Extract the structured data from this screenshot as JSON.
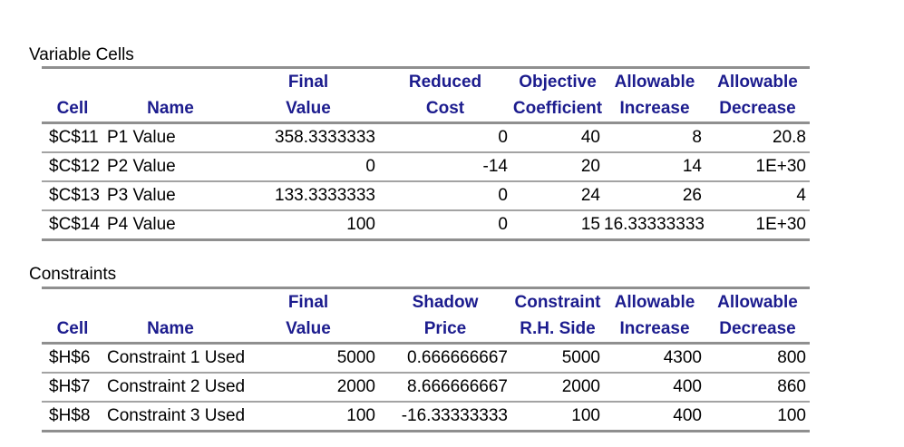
{
  "report_type": "solver-sensitivity-report",
  "colors": {
    "background": "#ffffff",
    "header_text": "#1c1c8e",
    "body_text": "#000000",
    "grid_line_heavy": "#8f8f8f",
    "grid_line_light": "#a3a3a3"
  },
  "variable_cells": {
    "title": "Variable Cells",
    "col_headers_top": [
      "",
      "",
      "Final",
      "Reduced",
      "Objective",
      "Allowable",
      "Allowable"
    ],
    "col_headers_bottom": [
      "Cell",
      "Name",
      "Value",
      "Cost",
      "Coefficient",
      "Increase",
      "Decrease"
    ],
    "rows": [
      [
        "$C$11",
        "P1 Value",
        "358.3333333",
        "0",
        "40",
        "8",
        "20.8"
      ],
      [
        "$C$12",
        "P2 Value",
        "0",
        "-14",
        "20",
        "14",
        "1E+30"
      ],
      [
        "$C$13",
        "P3 Value",
        "133.3333333",
        "0",
        "24",
        "26",
        "4"
      ],
      [
        "$C$14",
        "P4 Value",
        "100",
        "0",
        "15",
        "16.33333333",
        "1E+30"
      ]
    ]
  },
  "constraints": {
    "title": "Constraints",
    "col_headers_top": [
      "",
      "",
      "Final",
      "Shadow",
      "Constraint",
      "Allowable",
      "Allowable"
    ],
    "col_headers_bottom": [
      "Cell",
      "Name",
      "Value",
      "Price",
      "R.H. Side",
      "Increase",
      "Decrease"
    ],
    "rows": [
      [
        "$H$6",
        "Constraint 1 Used",
        "5000",
        "0.666666667",
        "5000",
        "4300",
        "800"
      ],
      [
        "$H$7",
        "Constraint 2 Used",
        "2000",
        "8.666666667",
        "2000",
        "400",
        "860"
      ],
      [
        "$H$8",
        "Constraint 3 Used",
        "100",
        "-16.33333333",
        "100",
        "400",
        "100"
      ]
    ]
  }
}
